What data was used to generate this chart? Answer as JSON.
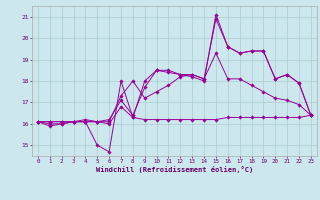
{
  "xlabel": "Windchill (Refroidissement éolien,°C)",
  "bg_color": "#cce8ee",
  "grid_color": "#aacccc",
  "line_color": "#990099",
  "ylim": [
    14.5,
    21.5
  ],
  "xlim": [
    -0.5,
    23.5
  ],
  "yticks": [
    15,
    16,
    17,
    18,
    19,
    20,
    21
  ],
  "xticks": [
    0,
    1,
    2,
    3,
    4,
    5,
    6,
    7,
    8,
    9,
    10,
    11,
    12,
    13,
    14,
    15,
    16,
    17,
    18,
    19,
    20,
    21,
    22,
    23
  ],
  "series": [
    [
      16.1,
      15.9,
      16.0,
      16.1,
      16.2,
      16.1,
      16.2,
      17.1,
      16.4,
      17.7,
      18.5,
      18.5,
      18.3,
      18.3,
      18.1,
      20.9,
      19.6,
      19.3,
      19.4,
      19.4,
      18.1,
      18.3,
      17.9,
      16.4
    ],
    [
      16.1,
      16.1,
      16.1,
      16.1,
      16.1,
      16.1,
      16.1,
      17.3,
      18.0,
      17.2,
      17.5,
      17.8,
      18.2,
      18.3,
      18.1,
      19.3,
      18.1,
      18.1,
      17.8,
      17.5,
      17.2,
      17.1,
      16.9,
      16.4
    ],
    [
      16.1,
      16.1,
      16.1,
      16.1,
      16.1,
      16.1,
      16.0,
      16.8,
      16.3,
      16.2,
      16.2,
      16.2,
      16.2,
      16.2,
      16.2,
      16.2,
      16.3,
      16.3,
      16.3,
      16.3,
      16.3,
      16.3,
      16.3,
      16.4
    ],
    [
      16.1,
      16.0,
      16.0,
      16.1,
      16.1,
      15.0,
      14.7,
      18.0,
      16.3,
      18.0,
      18.5,
      18.4,
      18.3,
      18.2,
      18.0,
      21.1,
      19.6,
      19.3,
      19.4,
      19.4,
      18.1,
      18.3,
      17.9,
      16.4
    ]
  ]
}
